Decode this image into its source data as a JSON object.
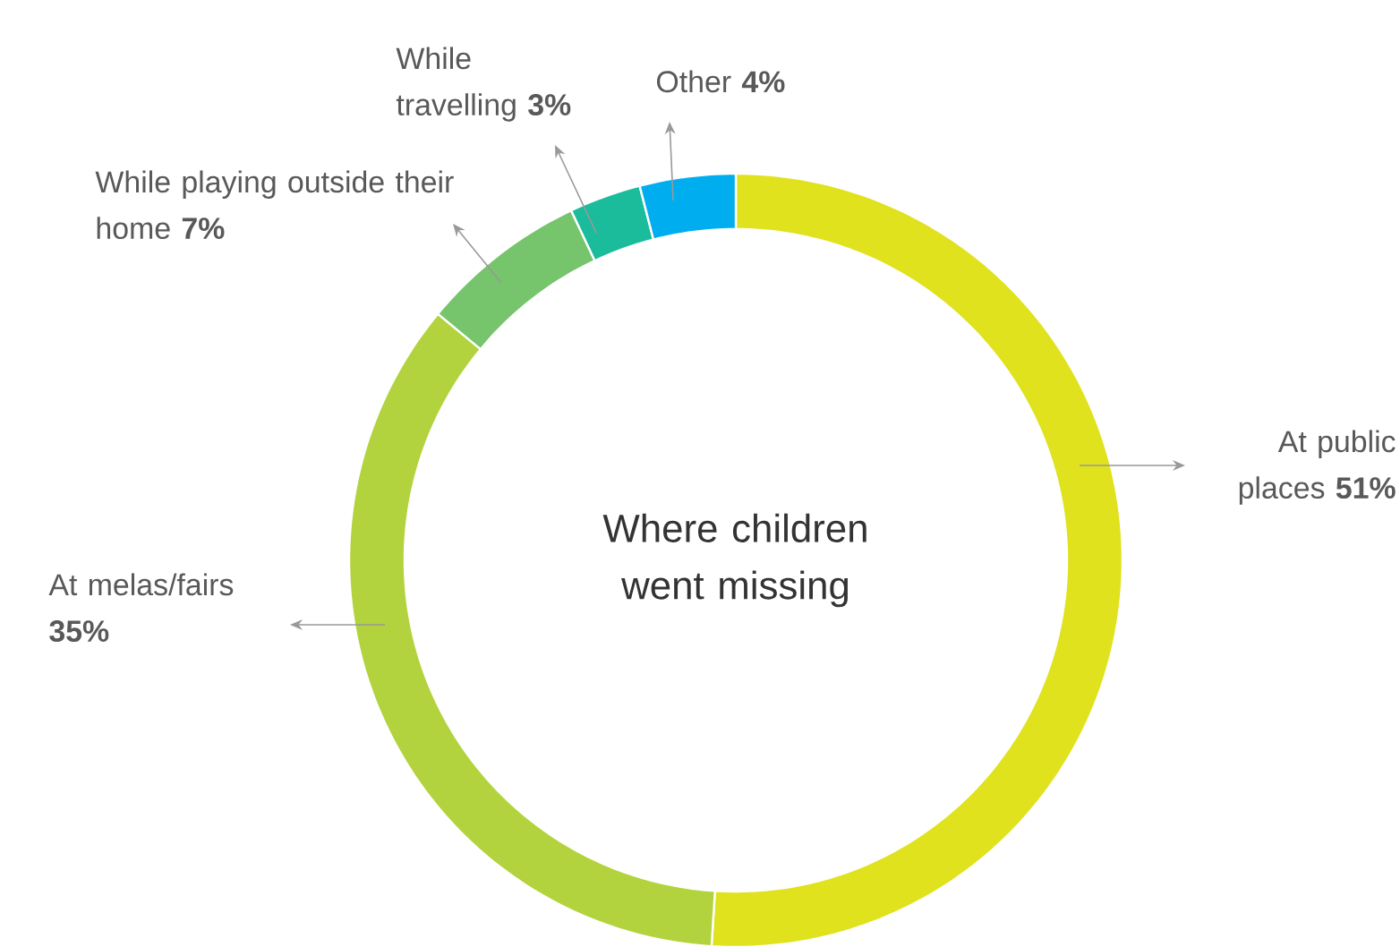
{
  "chart_data": {
    "type": "donut",
    "title": "Where children went missing",
    "categories": [
      "At public places",
      "At melas/fairs",
      "While playing outside their home",
      "While travelling",
      "Other"
    ],
    "values": [
      51,
      35,
      7,
      3,
      4
    ],
    "colors": [
      "#dfe21d",
      "#b3d33e",
      "#76c46c",
      "#1bbc9b",
      "#00aeef"
    ],
    "value_labels": [
      "51%",
      "35%",
      "7%",
      "3%",
      "4%"
    ]
  }
}
